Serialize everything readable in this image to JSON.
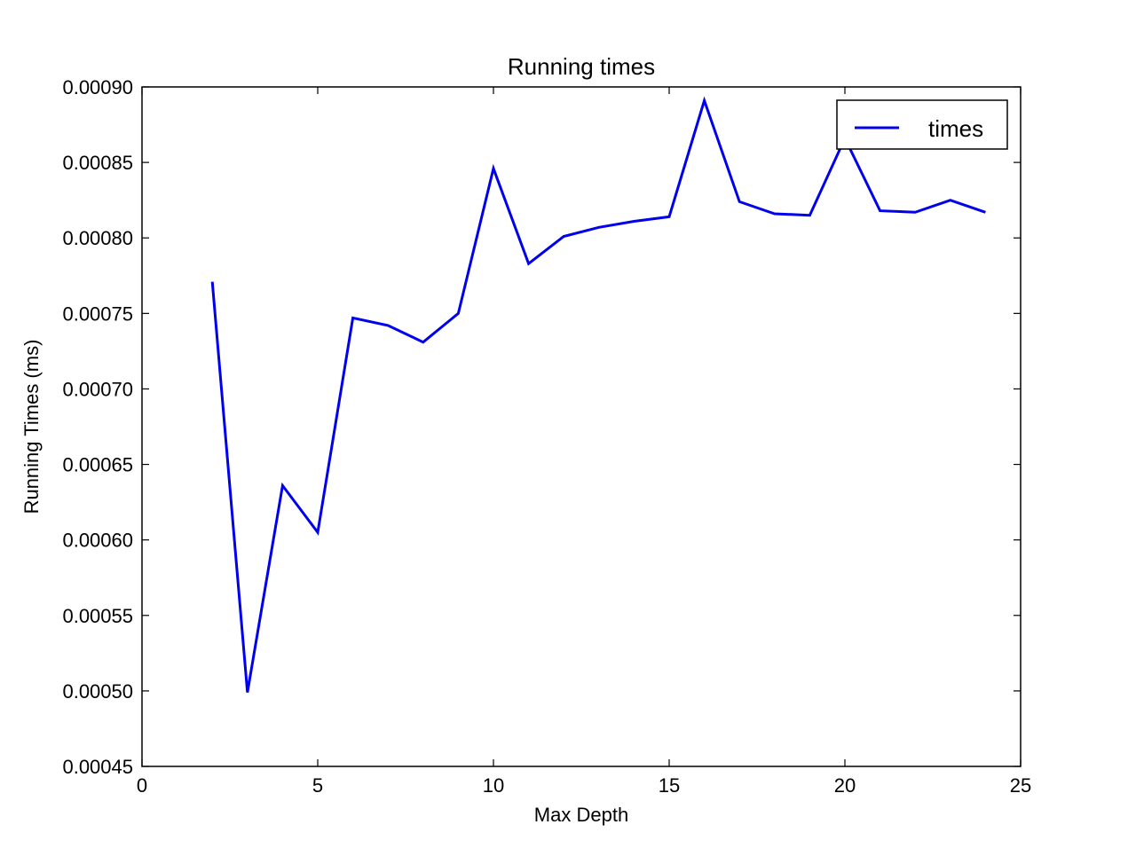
{
  "chart_data": {
    "type": "line",
    "title": "Running times",
    "xlabel": "Max Depth",
    "ylabel": "Running Times (ms)",
    "xlim": [
      0,
      25
    ],
    "ylim": [
      0.00045,
      0.0009
    ],
    "xticks": [
      0,
      5,
      10,
      15,
      20,
      25
    ],
    "xtick_labels": [
      "0",
      "5",
      "10",
      "15",
      "20",
      "25"
    ],
    "yticks": [
      0.00045,
      0.0005,
      0.00055,
      0.0006,
      0.00065,
      0.0007,
      0.00075,
      0.0008,
      0.00085,
      0.0009
    ],
    "ytick_labels": [
      "0.00045",
      "0.00050",
      "0.00055",
      "0.00060",
      "0.00065",
      "0.00070",
      "0.00075",
      "0.00080",
      "0.00085",
      "0.00090"
    ],
    "grid": false,
    "legend": {
      "placement": "top-right"
    },
    "series": [
      {
        "name": "times",
        "color": "#0000ee",
        "x": [
          2,
          3,
          4,
          5,
          6,
          7,
          8,
          9,
          10,
          11,
          12,
          13,
          14,
          15,
          16,
          17,
          18,
          19,
          20,
          21,
          22,
          23,
          24
        ],
        "y": [
          0.000771,
          0.000499,
          0.000636,
          0.000605,
          0.000747,
          0.000742,
          0.000731,
          0.00075,
          0.000846,
          0.000783,
          0.000801,
          0.000807,
          0.000811,
          0.000814,
          0.000891,
          0.000824,
          0.000816,
          0.000815,
          0.000866,
          0.000818,
          0.000817,
          0.000825,
          0.000817
        ]
      }
    ]
  }
}
